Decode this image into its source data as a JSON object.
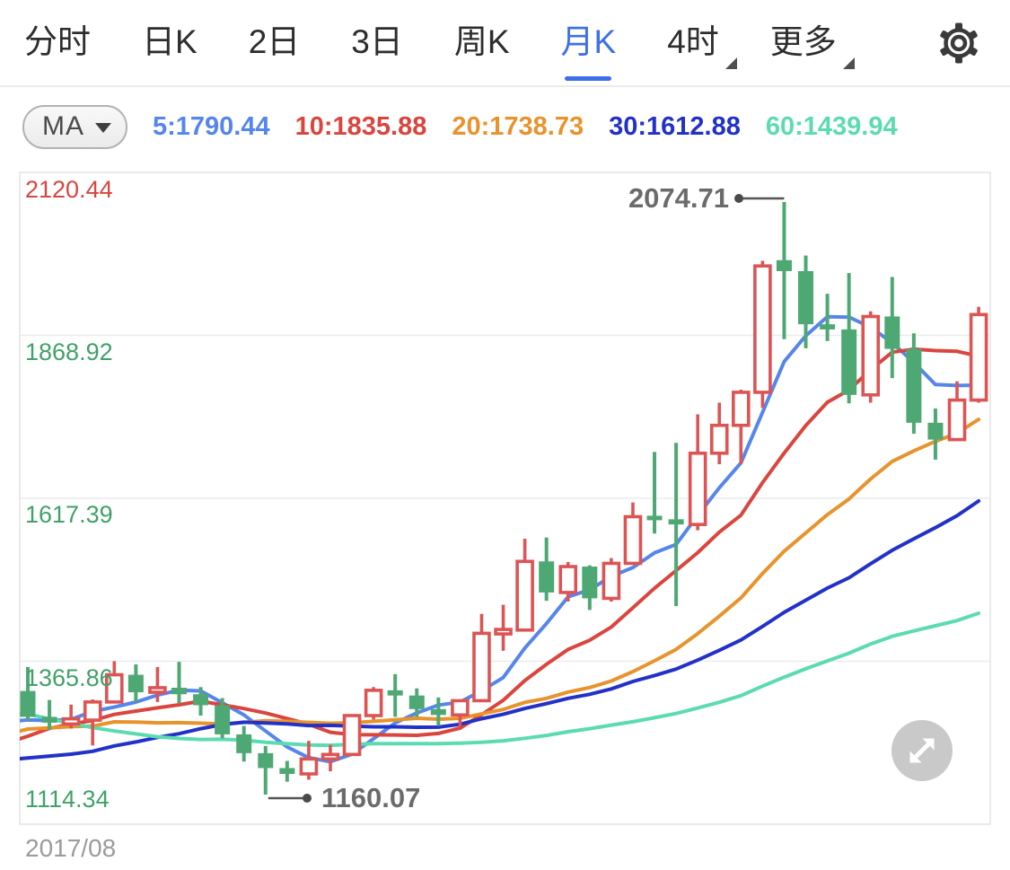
{
  "tabbar": {
    "tabs": [
      {
        "label": "分时",
        "active": false,
        "dropdown": false
      },
      {
        "label": "日K",
        "active": false,
        "dropdown": false
      },
      {
        "label": "2日",
        "active": false,
        "dropdown": false
      },
      {
        "label": "3日",
        "active": false,
        "dropdown": false
      },
      {
        "label": "周K",
        "active": false,
        "dropdown": false
      },
      {
        "label": "月K",
        "active": true,
        "dropdown": false
      },
      {
        "label": "4时",
        "active": false,
        "dropdown": true
      },
      {
        "label": "更多",
        "active": false,
        "dropdown": true
      }
    ],
    "active_color": "#3d6fe8",
    "text_color": "#2d2d2d"
  },
  "ma_toolbar": {
    "selector_label": "MA",
    "items": [
      {
        "label": "5:1790.44",
        "color": "#5686ec"
      },
      {
        "label": "10:1835.88",
        "color": "#da453e"
      },
      {
        "label": "20:1738.73",
        "color": "#e8932c"
      },
      {
        "label": "30:1612.88",
        "color": "#2231c8"
      },
      {
        "label": "60:1439.94",
        "color": "#5cdbb0"
      }
    ]
  },
  "chart_data": {
    "type": "candlestick",
    "x_axis": {
      "first_visible_label": "2017/08"
    },
    "y_axis": {
      "max": 2120.44,
      "min": 1114.34,
      "labels": [
        {
          "text": "2120.44",
          "color": "#d9463f"
        },
        {
          "text": "1868.92",
          "color": "#41a168"
        },
        {
          "text": "1617.39",
          "color": "#41a168"
        },
        {
          "text": "1365.86",
          "color": "#41a168"
        },
        {
          "text": "1114.34",
          "color": "#41a168"
        }
      ]
    },
    "annotations": {
      "high": {
        "text": "2074.71",
        "price": 2074.71,
        "candle_index": 35
      },
      "low": {
        "text": "1160.07",
        "price": 1160.07,
        "candle_index": 11
      }
    },
    "colors": {
      "up_candle": "#dc5454",
      "down_candle": "#4ea873",
      "grid": "#ececec",
      "border": "#e2e2e2",
      "annotation_line": "#555555"
    },
    "ma_lines": [
      {
        "period": 5,
        "color": "#5686ec"
      },
      {
        "period": 10,
        "color": "#da453e"
      },
      {
        "period": 20,
        "color": "#e8932c"
      },
      {
        "period": 30,
        "color": "#2231c8"
      },
      {
        "period": 60,
        "color": "#5cdbb0"
      }
    ],
    "ma_seed_closes": [
      1719,
      1715,
      1675,
      1662,
      1580,
      1597,
      1469,
      1387,
      1235,
      1312,
      1395,
      1327,
      1324,
      1253,
      1202,
      1244,
      1326,
      1284,
      1292,
      1250,
      1327,
      1282,
      1287,
      1208,
      1173,
      1175,
      1184,
      1283,
      1213,
      1184,
      1184,
      1190,
      1172,
      1095,
      1134,
      1115,
      1142,
      1065,
      1061,
      1118,
      1238,
      1232,
      1292,
      1212,
      1322,
      1351,
      1309,
      1316,
      1277,
      1173,
      1151,
      1210,
      1248,
      1251,
      1266,
      1275,
      1269,
      1241,
      1311
    ],
    "candles_ohlc": [
      [
        1320,
        1357,
        1274,
        1280
      ],
      [
        1280,
        1306,
        1260,
        1271
      ],
      [
        1269,
        1299,
        1262,
        1277
      ],
      [
        1275,
        1307,
        1236,
        1303
      ],
      [
        1303,
        1366,
        1302,
        1345
      ],
      [
        1345,
        1361,
        1302,
        1318
      ],
      [
        1318,
        1357,
        1303,
        1325
      ],
      [
        1325,
        1365,
        1301,
        1315
      ],
      [
        1315,
        1326,
        1282,
        1298
      ],
      [
        1298,
        1309,
        1247,
        1253
      ],
      [
        1253,
        1266,
        1211,
        1224
      ],
      [
        1224,
        1235,
        1160.07,
        1201
      ],
      [
        1201,
        1212,
        1180,
        1192
      ],
      [
        1192,
        1243,
        1183,
        1215
      ],
      [
        1215,
        1237,
        1196,
        1222
      ],
      [
        1222,
        1284,
        1221,
        1282
      ],
      [
        1282,
        1326,
        1276,
        1321
      ],
      [
        1321,
        1346,
        1280,
        1313
      ],
      [
        1313,
        1324,
        1280,
        1292
      ],
      [
        1292,
        1310,
        1266,
        1283
      ],
      [
        1283,
        1307,
        1266,
        1305
      ],
      [
        1305,
        1439,
        1305,
        1409
      ],
      [
        1409,
        1453,
        1382,
        1414
      ],
      [
        1414,
        1555,
        1412,
        1520
      ],
      [
        1520,
        1557,
        1459,
        1472
      ],
      [
        1472,
        1519,
        1458,
        1512
      ],
      [
        1512,
        1514,
        1445,
        1463
      ],
      [
        1463,
        1525,
        1458,
        1517
      ],
      [
        1517,
        1611,
        1517,
        1589
      ],
      [
        1589,
        1689,
        1563,
        1585
      ],
      [
        1585,
        1703,
        1451,
        1577
      ],
      [
        1577,
        1747,
        1568,
        1687
      ],
      [
        1687,
        1765,
        1670,
        1730
      ],
      [
        1730,
        1785,
        1670,
        1781
      ],
      [
        1781,
        1984,
        1757,
        1976
      ],
      [
        1985,
        2074.71,
        1863,
        1968
      ],
      [
        1968,
        1992,
        1849,
        1886
      ],
      [
        1886,
        1933,
        1860,
        1878
      ],
      [
        1878,
        1965,
        1764,
        1777
      ],
      [
        1777,
        1906,
        1765,
        1898
      ],
      [
        1898,
        1959,
        1803,
        1848
      ],
      [
        1848,
        1872,
        1717,
        1734
      ],
      [
        1734,
        1756,
        1677,
        1708
      ],
      [
        1708,
        1798,
        1706,
        1769
      ],
      [
        1769,
        1913,
        1765,
        1901
      ]
    ]
  }
}
